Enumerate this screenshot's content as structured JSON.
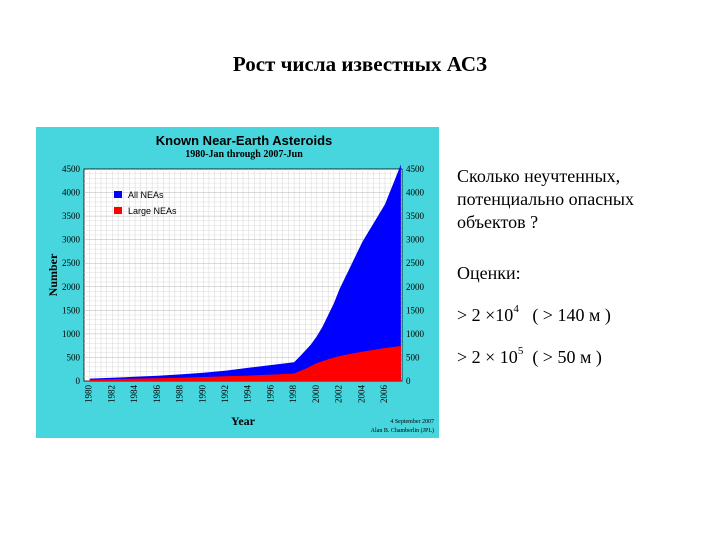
{
  "slide": {
    "title": "Рост числа известных АСЗ",
    "question": [
      "Сколько неучтенных,",
      "потенциально опасных",
      "объектов ?"
    ],
    "estimates_title": "Оценки:",
    "estimates": [
      {
        "prefix": "> 2 ×10",
        "exponent": "4",
        "suffix": "   ( > 140 м )"
      },
      {
        "prefix": "> 2 × 10",
        "exponent": "5",
        "suffix": "  ( > 50 м )"
      }
    ]
  },
  "colors": {
    "panel_bg": "#47d6dd",
    "plot_bg": "#ffffff",
    "all_neas": "#0000ff",
    "large_neas": "#ff0000",
    "grid": "#c8c8c8"
  },
  "chart_data": {
    "type": "area",
    "title": "Known Near-Earth Asteroids",
    "subtitle": "1980-Jan through 2007-Jun",
    "xlabel": "Year",
    "ylabel": "Number",
    "xlim": [
      1979.5,
      2007.5
    ],
    "ylim": [
      0,
      4500
    ],
    "x_ticks": [
      "1980",
      "1982",
      "1984",
      "1986",
      "1988",
      "1990",
      "1992",
      "1994",
      "1996",
      "1998",
      "2000",
      "2002",
      "2004",
      "2006"
    ],
    "y_ticks": [
      0,
      500,
      1000,
      1500,
      2000,
      2500,
      3000,
      3500,
      4000,
      4500
    ],
    "grid": true,
    "legend_position": "top-left",
    "credit": [
      "4 September 2007",
      "Alan B. Chamberlin (JPL)"
    ],
    "series": [
      {
        "name": "All NEAs",
        "color": "#0000ff",
        "x": [
          1980,
          1982,
          1984,
          1986,
          1988,
          1990,
          1992,
          1994,
          1996,
          1997,
          1998,
          1998.5,
          1999,
          1999.5,
          2000,
          2000.5,
          2001,
          2001.5,
          2002,
          2002.5,
          2003,
          2003.5,
          2004,
          2004.5,
          2005,
          2005.5,
          2006,
          2006.5,
          2007,
          2007.4
        ],
        "y": [
          50,
          70,
          90,
          110,
          140,
          175,
          220,
          280,
          340,
          370,
          400,
          520,
          650,
          780,
          950,
          1150,
          1400,
          1650,
          1950,
          2200,
          2450,
          2700,
          2950,
          3150,
          3350,
          3550,
          3750,
          4050,
          4350,
          4600
        ]
      },
      {
        "name": "Large NEAs",
        "color": "#ff0000",
        "x": [
          1980,
          1982,
          1984,
          1986,
          1988,
          1990,
          1992,
          1994,
          1996,
          1998,
          1999,
          2000,
          2001,
          2002,
          2003,
          2004,
          2005,
          2006,
          2007,
          2007.4
        ],
        "y": [
          30,
          40,
          50,
          60,
          70,
          85,
          100,
          115,
          135,
          160,
          260,
          380,
          460,
          530,
          580,
          620,
          660,
          700,
          730,
          745
        ]
      }
    ]
  }
}
